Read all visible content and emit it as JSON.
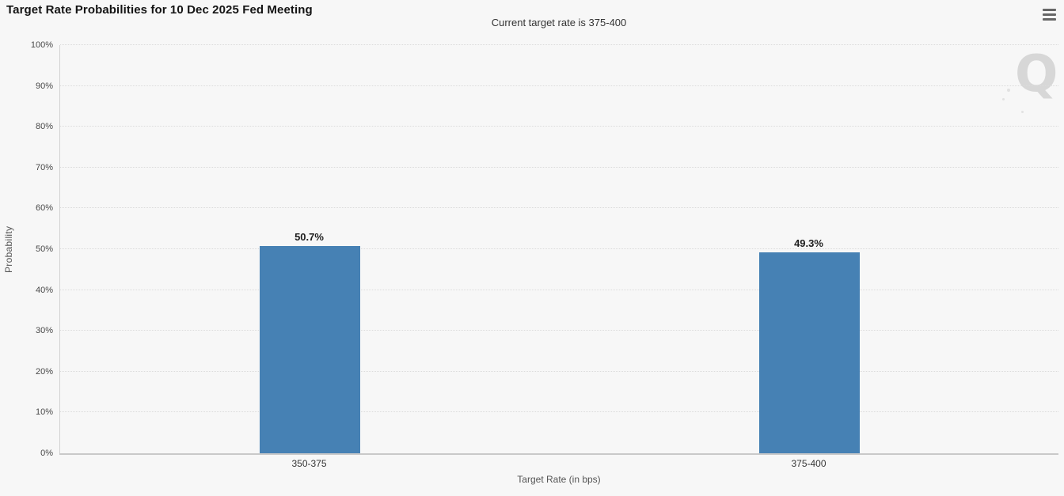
{
  "header": {
    "title": "Target Rate Probabilities for 10 Dec 2025 Fed Meeting",
    "menu_icon": "hamburger-menu-icon"
  },
  "watermark": {
    "letter": "Q"
  },
  "chart_data": {
    "type": "bar",
    "title": "Target Rate Probabilities for 10 Dec 2025 Fed Meeting",
    "subtitle": "Current target rate is 375-400",
    "xlabel": "Target Rate (in bps)",
    "ylabel": "Probability",
    "categories": [
      "350-375",
      "375-400"
    ],
    "values": [
      50.7,
      49.3
    ],
    "value_labels": [
      "50.7%",
      "49.3%"
    ],
    "ylim": [
      0,
      100
    ],
    "ytick_step": 10,
    "ytick_labels": [
      "0%",
      "10%",
      "20%",
      "30%",
      "40%",
      "50%",
      "60%",
      "70%",
      "80%",
      "90%",
      "100%"
    ],
    "grid": true,
    "gridline_style": "dotted",
    "legend": "none",
    "bar_color": "#4681b4",
    "background_color": "#f7f7f7"
  }
}
